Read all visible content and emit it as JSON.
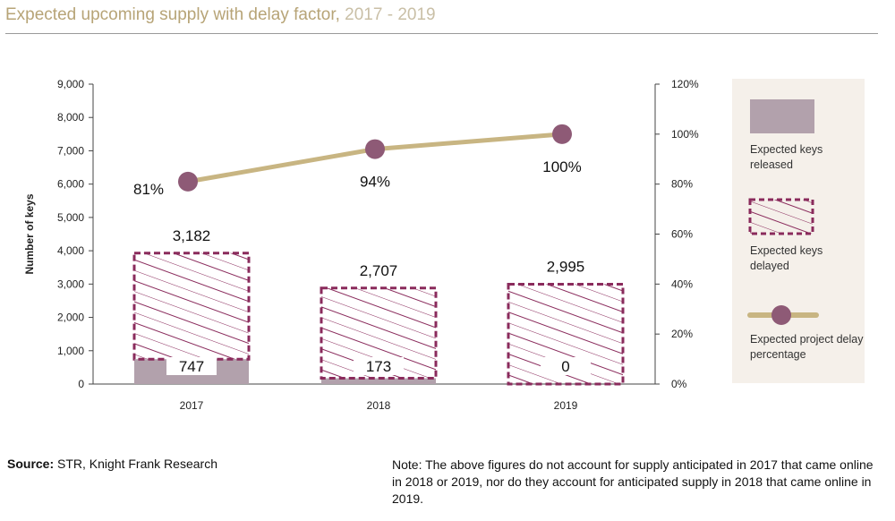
{
  "header": {
    "title_main": "Expected upcoming supply with delay factor,",
    "title_years": "2017 - 2019"
  },
  "footer": {
    "source_label": "Source:",
    "source_text": "STR, Knight Frank Research",
    "note": "Note: The above figures do not account for supply anticipated in 2017 that came online in 2018 or 2019, nor do they account for anticipated supply in 2018 that came online in 2019."
  },
  "chart_data": {
    "type": "bar",
    "categories": [
      "2017",
      "2018",
      "2019"
    ],
    "ylabel": "Number of keys",
    "ylim": [
      0,
      9000
    ],
    "yticks": [
      "0",
      "1,000",
      "2,000",
      "3,000",
      "4,000",
      "5,000",
      "6,000",
      "7,000",
      "8,000",
      "9,000"
    ],
    "y2lim": [
      0,
      120
    ],
    "y2ticks": [
      "0%",
      "20%",
      "40%",
      "60%",
      "80%",
      "100%",
      "120%"
    ],
    "series": [
      {
        "name": "Expected keys released",
        "type": "bar",
        "values": [
          747,
          173,
          0
        ],
        "labels": [
          "747",
          "173",
          "0"
        ]
      },
      {
        "name": "Expected keys delayed",
        "type": "bar",
        "values": [
          3182,
          2707,
          2995
        ],
        "labels": [
          "3,182",
          "2,707",
          "2,995"
        ]
      },
      {
        "name": "Expected project delay percentage",
        "type": "line",
        "axis": "secondary",
        "values": [
          81,
          94,
          100
        ],
        "labels": [
          "81%",
          "94%",
          "100%"
        ]
      }
    ],
    "legend": [
      "Expected keys released",
      "Expected keys delayed",
      "Expected project delay percentage"
    ],
    "legend_position": "right",
    "colors": {
      "released": "#b2a1ac",
      "delayed": "#8a2b5c",
      "line": "#c8b582",
      "marker": "#8e5a76",
      "legend_bg": "#f5f0ea"
    }
  }
}
